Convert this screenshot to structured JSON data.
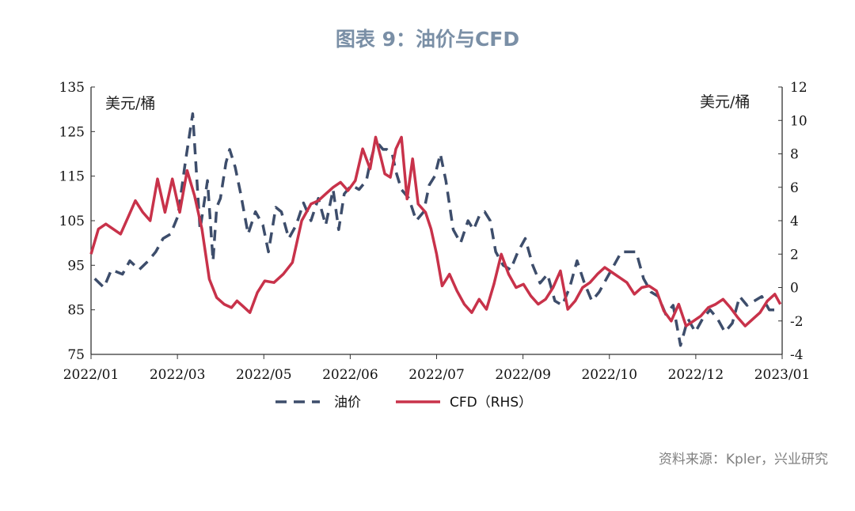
{
  "title": "图表 9：油价与CFD",
  "source": "资料来源：Kpler，兴业研究",
  "colors": {
    "oil": "#3d4d6b",
    "cfd": "#c8324a",
    "axis": "#333333"
  },
  "chart_data": {
    "type": "line",
    "left_unit": "美元/桶",
    "right_unit": "美元/桶",
    "x_ticks": [
      "2022/01",
      "2022/03",
      "2022/05",
      "2022/06",
      "2022/07",
      "2022/09",
      "2022/10",
      "2022/12",
      "2023/01"
    ],
    "y_left": {
      "min": 75,
      "max": 135,
      "ticks": [
        75,
        85,
        95,
        105,
        115,
        125,
        135
      ]
    },
    "y_right": {
      "min": -4,
      "max": 12,
      "ticks": [
        -4,
        -2,
        0,
        2,
        4,
        6,
        8,
        10,
        12
      ]
    },
    "legend": [
      "油价",
      "CFD（RHS）"
    ],
    "series": [
      {
        "name": "油价",
        "axis": "left",
        "style": "dashed",
        "x": [
          "2022-01-03",
          "2022-01-08",
          "2022-01-12",
          "2022-01-18",
          "2022-01-22",
          "2022-01-27",
          "2022-02-01",
          "2022-02-05",
          "2022-02-09",
          "2022-02-13",
          "2022-02-17",
          "2022-02-21",
          "2022-02-25",
          "2022-03-01",
          "2022-03-05",
          "2022-03-08",
          "2022-03-10",
          "2022-03-12",
          "2022-03-15",
          "2022-03-17",
          "2022-03-20",
          "2022-03-23",
          "2022-03-27",
          "2022-03-31",
          "2022-04-04",
          "2022-04-07",
          "2022-04-11",
          "2022-04-14",
          "2022-04-18",
          "2022-04-22",
          "2022-04-26",
          "2022-04-30",
          "2022-05-04",
          "2022-05-08",
          "2022-05-12",
          "2022-05-15",
          "2022-05-18",
          "2022-05-22",
          "2022-05-26",
          "2022-05-30",
          "2022-06-01",
          "2022-06-03",
          "2022-06-06",
          "2022-06-08",
          "2022-06-10",
          "2022-06-13",
          "2022-06-15",
          "2022-06-18",
          "2022-06-22",
          "2022-06-26",
          "2022-06-30",
          "2022-07-03",
          "2022-07-06",
          "2022-07-09",
          "2022-07-12",
          "2022-07-16",
          "2022-07-20",
          "2022-07-24",
          "2022-07-27",
          "2022-07-30",
          "2022-08-02",
          "2022-08-05",
          "2022-08-08",
          "2022-08-12",
          "2022-08-16",
          "2022-08-20",
          "2022-08-24",
          "2022-08-28",
          "2022-09-01",
          "2022-09-05",
          "2022-09-09",
          "2022-09-13",
          "2022-09-17",
          "2022-09-21",
          "2022-09-25",
          "2022-09-29",
          "2022-10-03",
          "2022-10-07",
          "2022-10-11",
          "2022-10-15",
          "2022-10-19",
          "2022-10-23",
          "2022-10-27",
          "2022-10-31",
          "2022-11-04",
          "2022-11-08",
          "2022-11-12",
          "2022-11-16",
          "2022-11-20",
          "2022-11-24",
          "2022-11-28",
          "2022-12-02",
          "2022-12-06",
          "2022-12-10",
          "2022-12-14",
          "2022-12-18",
          "2022-12-22",
          "2022-12-26",
          "2022-12-30",
          "2023-01-03",
          "2023-01-05",
          "2023-01-08"
        ],
        "values": [
          92,
          90,
          94,
          93,
          96,
          94,
          96,
          98,
          101,
          102,
          106,
          118,
          129,
          103,
          114,
          96,
          108,
          110,
          118,
          121,
          117,
          111,
          102,
          107,
          104,
          98,
          108,
          107,
          101,
          104,
          109,
          105,
          110,
          104,
          112,
          103,
          111,
          113,
          112,
          114,
          118,
          121,
          122,
          121,
          121,
          120,
          116,
          112,
          110,
          105,
          107,
          113,
          115,
          120,
          114,
          103,
          100,
          105,
          103,
          106,
          107,
          105,
          98,
          95,
          94,
          98,
          101,
          95,
          91,
          93,
          87,
          86,
          90,
          96,
          91,
          87,
          89,
          92,
          95,
          98,
          98,
          98,
          92,
          89,
          88,
          84,
          86,
          77,
          83,
          80,
          83,
          85,
          83,
          80,
          82,
          88,
          86,
          87,
          88,
          85,
          85,
          85
        ]
      },
      {
        "name": "CFD（RHS）",
        "axis": "right",
        "style": "solid",
        "x": [
          "2022-01-01",
          "2022-01-05",
          "2022-01-09",
          "2022-01-13",
          "2022-01-17",
          "2022-01-21",
          "2022-01-25",
          "2022-01-29",
          "2022-02-02",
          "2022-02-06",
          "2022-02-10",
          "2022-02-14",
          "2022-02-18",
          "2022-02-22",
          "2022-02-26",
          "2022-03-02",
          "2022-03-06",
          "2022-03-10",
          "2022-03-14",
          "2022-03-18",
          "2022-03-21",
          "2022-03-24",
          "2022-03-28",
          "2022-04-01",
          "2022-04-05",
          "2022-04-10",
          "2022-04-15",
          "2022-04-20",
          "2022-04-25",
          "2022-04-30",
          "2022-05-04",
          "2022-05-08",
          "2022-05-12",
          "2022-05-16",
          "2022-05-20",
          "2022-05-24",
          "2022-05-28",
          "2022-06-01",
          "2022-06-04",
          "2022-06-07",
          "2022-06-09",
          "2022-06-12",
          "2022-06-15",
          "2022-06-18",
          "2022-06-21",
          "2022-06-24",
          "2022-06-27",
          "2022-07-01",
          "2022-07-04",
          "2022-07-07",
          "2022-07-10",
          "2022-07-14",
          "2022-07-18",
          "2022-07-22",
          "2022-07-26",
          "2022-07-30",
          "2022-08-03",
          "2022-08-07",
          "2022-08-11",
          "2022-08-15",
          "2022-08-19",
          "2022-08-23",
          "2022-08-27",
          "2022-08-31",
          "2022-09-04",
          "2022-09-08",
          "2022-09-12",
          "2022-09-16",
          "2022-09-20",
          "2022-09-24",
          "2022-09-28",
          "2022-10-02",
          "2022-10-06",
          "2022-10-10",
          "2022-10-14",
          "2022-10-18",
          "2022-10-22",
          "2022-10-26",
          "2022-10-30",
          "2022-11-03",
          "2022-11-07",
          "2022-11-11",
          "2022-11-15",
          "2022-11-19",
          "2022-11-23",
          "2022-11-27",
          "2022-12-01",
          "2022-12-05",
          "2022-12-09",
          "2022-12-13",
          "2022-12-17",
          "2022-12-21",
          "2022-12-25",
          "2022-12-29",
          "2023-01-02",
          "2023-01-06",
          "2023-01-09"
        ],
        "values": [
          2.0,
          3.5,
          3.8,
          3.5,
          3.2,
          4.2,
          5.2,
          4.5,
          4.0,
          6.5,
          4.5,
          6.5,
          4.5,
          7.0,
          5.5,
          3.5,
          0.5,
          -0.6,
          -1.0,
          -1.2,
          -0.8,
          -1.1,
          -1.5,
          -0.3,
          0.4,
          0.3,
          0.8,
          1.5,
          4.0,
          5.0,
          5.2,
          5.6,
          6.0,
          6.3,
          5.8,
          6.4,
          8.3,
          7.1,
          9.0,
          7.7,
          6.8,
          6.6,
          8.3,
          9.0,
          5.3,
          7.7,
          5.0,
          4.5,
          3.5,
          2.0,
          0.1,
          0.8,
          -0.2,
          -1.0,
          -1.5,
          -0.7,
          -1.3,
          0.2,
          2.0,
          0.8,
          0.0,
          0.2,
          -0.5,
          -1.0,
          -0.7,
          0.0,
          1.0,
          -1.3,
          -0.8,
          0.0,
          0.3,
          0.8,
          1.2,
          0.9,
          0.6,
          0.3,
          -0.4,
          0.0,
          0.1,
          -0.2,
          -1.4,
          -2.0,
          -1.0,
          -2.3,
          -2.0,
          -1.7,
          -1.2,
          -1.0,
          -0.7,
          -1.2,
          -1.8,
          -2.3,
          -1.9,
          -1.5,
          -0.8,
          -0.4,
          -1.0
        ]
      }
    ]
  }
}
